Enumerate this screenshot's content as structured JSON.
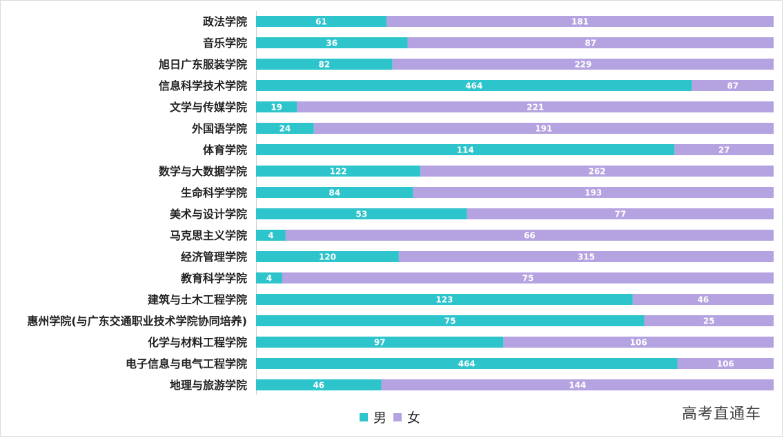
{
  "chart_data": {
    "type": "bar",
    "orientation": "horizontal",
    "stacked": true,
    "normalized": "percent",
    "categories": [
      "政法学院",
      "音乐学院",
      "旭日广东服装学院",
      "信息科学技术学院",
      "文学与传媒学院",
      "外国语学院",
      "体育学院",
      "数学与大数据学院",
      "生命科学学院",
      "美术与设计学院",
      "马克思主义学院",
      "经济管理学院",
      "教育科学学院",
      "建筑与土木工程学院",
      "惠州学院(与广东交通职业技术学院协同培养)",
      "化学与材料工程学院",
      "电子信息与电气工程学院",
      "地理与旅游学院"
    ],
    "series": [
      {
        "name": "男",
        "color": "#2ec4cc",
        "values": [
          61,
          36,
          82,
          464,
          19,
          24,
          114,
          122,
          84,
          53,
          4,
          120,
          4,
          123,
          75,
          97,
          464,
          46
        ]
      },
      {
        "name": "女",
        "color": "#b4a3e0",
        "values": [
          181,
          87,
          229,
          87,
          221,
          191,
          27,
          262,
          193,
          77,
          66,
          315,
          75,
          46,
          25,
          106,
          106,
          144
        ]
      }
    ],
    "title": "",
    "xlabel": "",
    "ylabel": "",
    "grid": false,
    "legend": "bottom-left"
  },
  "watermark": "高考直通车"
}
